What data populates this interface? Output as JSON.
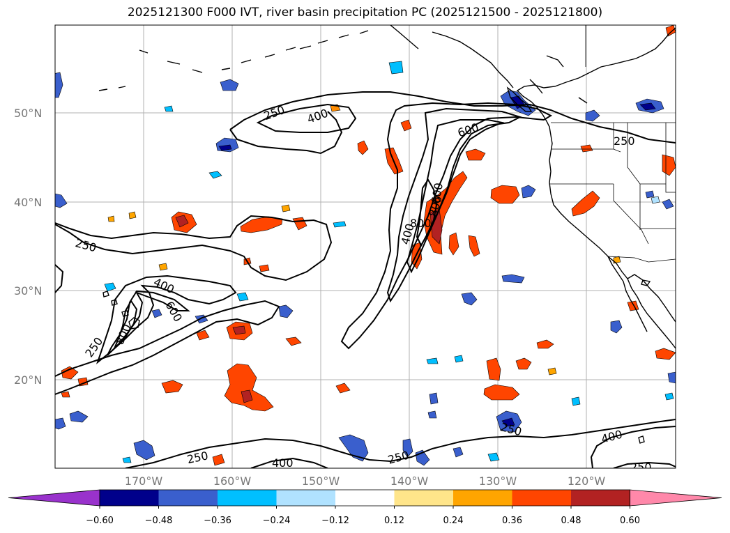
{
  "title": "2025121300 F000 IVT, river basin precipitation PC (2025121500 - 2025121800)",
  "lat_labels": [
    "50°N",
    "40°N",
    "30°N",
    "20°N"
  ],
  "lon_labels": [
    "170°W",
    "160°W",
    "150°W",
    "140°W",
    "130°W",
    "120°W"
  ],
  "contour_levels": [
    "250",
    "400",
    "600",
    "800"
  ],
  "colorbar": {
    "ticks": [
      "−0.60",
      "−0.48",
      "−0.36",
      "−0.24",
      "−0.12",
      "0.12",
      "0.24",
      "0.36",
      "0.48",
      "0.60"
    ],
    "colors": [
      "#9932cc",
      "#00008b",
      "#3a5fcd",
      "#00bfff",
      "#b0e2ff",
      "#ffffff",
      "#ffe58a",
      "#ffa500",
      "#ff4500",
      "#b22222",
      "#ff88aa"
    ]
  }
}
